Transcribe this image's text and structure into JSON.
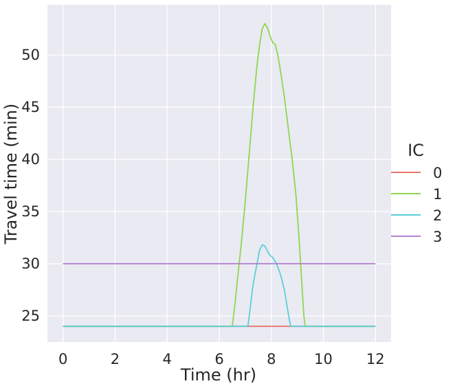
{
  "chart_data": {
    "type": "line",
    "title": "",
    "xlabel": "Time (hr)",
    "ylabel": "Travel time (min)",
    "xlim": [
      -0.6,
      12.6
    ],
    "ylim": [
      22.5,
      54.8
    ],
    "xticks": [
      0,
      2,
      4,
      6,
      8,
      10,
      12
    ],
    "yticks": [
      25,
      30,
      35,
      40,
      45,
      50
    ],
    "grid": true,
    "background": "#eaeaf2",
    "gridColor": "#ffffff",
    "legend": {
      "title": "IC",
      "placement": "right"
    },
    "series": [
      {
        "name": "0",
        "color": "#e8756a",
        "points": [
          [
            0,
            24.0
          ],
          [
            12,
            24.0
          ]
        ]
      },
      {
        "name": "1",
        "color": "#8fd64e",
        "points": [
          [
            0,
            24.0
          ],
          [
            6.5,
            24.0
          ],
          [
            6.6,
            26.0
          ],
          [
            6.7,
            28.5
          ],
          [
            6.85,
            32.0
          ],
          [
            7.0,
            36.0
          ],
          [
            7.15,
            40.5
          ],
          [
            7.3,
            45.0
          ],
          [
            7.45,
            49.0
          ],
          [
            7.55,
            51.0
          ],
          [
            7.65,
            52.5
          ],
          [
            7.75,
            53.0
          ],
          [
            7.85,
            52.6
          ],
          [
            7.95,
            51.8
          ],
          [
            8.05,
            51.2
          ],
          [
            8.15,
            51.0
          ],
          [
            8.25,
            50.0
          ],
          [
            8.35,
            48.5
          ],
          [
            8.5,
            46.0
          ],
          [
            8.65,
            43.0
          ],
          [
            8.8,
            40.0
          ],
          [
            8.95,
            36.5
          ],
          [
            9.05,
            33.0
          ],
          [
            9.15,
            29.0
          ],
          [
            9.25,
            25.0
          ],
          [
            9.3,
            24.0
          ],
          [
            12,
            24.0
          ]
        ]
      },
      {
        "name": "2",
        "color": "#5acfd8",
        "points": [
          [
            0,
            24.0
          ],
          [
            7.1,
            24.0
          ],
          [
            7.2,
            26.0
          ],
          [
            7.3,
            28.0
          ],
          [
            7.45,
            30.0
          ],
          [
            7.55,
            31.3
          ],
          [
            7.65,
            31.8
          ],
          [
            7.75,
            31.7
          ],
          [
            7.85,
            31.2
          ],
          [
            7.95,
            30.8
          ],
          [
            8.05,
            30.6
          ],
          [
            8.2,
            30.0
          ],
          [
            8.35,
            29.0
          ],
          [
            8.5,
            27.5
          ],
          [
            8.6,
            26.0
          ],
          [
            8.7,
            24.5
          ],
          [
            8.75,
            24.0
          ],
          [
            12,
            24.0
          ]
        ]
      },
      {
        "name": "3",
        "color": "#b07fcf",
        "points": [
          [
            0,
            30.0
          ],
          [
            12,
            30.0
          ]
        ]
      }
    ]
  }
}
